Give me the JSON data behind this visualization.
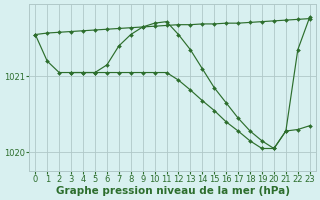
{
  "background_color": "#d8f0f0",
  "grid_color": "#b0c8c8",
  "line_color": "#2d6e2d",
  "xlabel": "Graphe pression niveau de la mer (hPa)",
  "xlabel_fontsize": 7.5,
  "tick_fontsize": 6,
  "yticks": [
    1020,
    1021
  ],
  "ylim": [
    1019.75,
    1021.95
  ],
  "xlim": [
    -0.5,
    23.5
  ],
  "xticks": [
    0,
    1,
    2,
    3,
    4,
    5,
    6,
    7,
    8,
    9,
    10,
    11,
    12,
    13,
    14,
    15,
    16,
    17,
    18,
    19,
    20,
    21,
    22,
    23
  ],
  "series": [
    {
      "x": [
        0,
        1,
        2,
        3,
        4,
        5,
        6,
        7,
        8,
        9,
        10,
        11,
        12,
        13,
        14,
        15,
        16,
        17,
        18,
        19,
        20,
        21,
        22,
        23
      ],
      "y": [
        1021.55,
        1021.57,
        1021.58,
        1021.59,
        1021.6,
        1021.61,
        1021.62,
        1021.63,
        1021.64,
        1021.65,
        1021.66,
        1021.67,
        1021.68,
        1021.68,
        1021.69,
        1021.69,
        1021.7,
        1021.7,
        1021.71,
        1021.72,
        1021.73,
        1021.74,
        1021.75,
        1021.76
      ]
    },
    {
      "x": [
        3,
        4,
        5,
        6,
        7,
        8,
        9,
        10,
        11,
        12,
        13,
        14,
        15,
        16,
        17,
        18,
        19,
        20,
        21,
        22,
        23
      ],
      "y": [
        1021.05,
        1021.05,
        1021.05,
        1021.15,
        1021.4,
        1021.55,
        1021.65,
        1021.7,
        1021.72,
        1021.55,
        1021.35,
        1021.1,
        1020.85,
        1020.65,
        1020.45,
        1020.28,
        1020.15,
        1020.05,
        1020.28,
        1021.35,
        1021.78
      ]
    },
    {
      "x": [
        0,
        1,
        2,
        3,
        4,
        5,
        6,
        7,
        8,
        9,
        10,
        11,
        12,
        13,
        14,
        15,
        16,
        17,
        18,
        19,
        20,
        21,
        22,
        23
      ],
      "y": [
        1021.55,
        1021.2,
        1021.05,
        1021.05,
        1021.05,
        1021.05,
        1021.05,
        1021.05,
        1021.05,
        1021.05,
        1021.05,
        1021.05,
        1020.95,
        1020.82,
        1020.68,
        1020.55,
        1020.4,
        1020.28,
        1020.15,
        1020.05,
        1020.05,
        1020.28,
        1020.3,
        1020.35
      ]
    }
  ]
}
